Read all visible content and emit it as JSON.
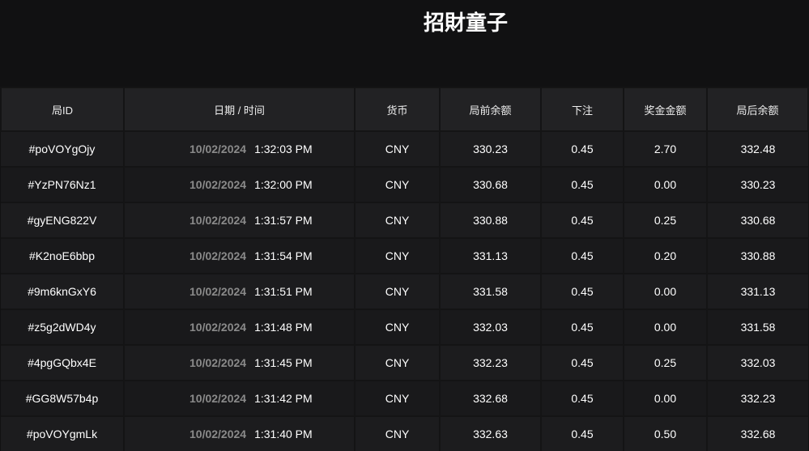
{
  "title": "招財童子",
  "headers": [
    "局ID",
    "日期 / 时间",
    "货币",
    "局前余额",
    "下注",
    "奖金金额",
    "局后余额"
  ],
  "rows": [
    {
      "id": "#poVOYgOjy",
      "date": "10/02/2024",
      "time": "1:32:03 PM",
      "currency": "CNY",
      "before": "330.23",
      "bet": "0.45",
      "win": "2.70",
      "after": "332.48"
    },
    {
      "id": "#YzPN76Nz1",
      "date": "10/02/2024",
      "time": "1:32:00 PM",
      "currency": "CNY",
      "before": "330.68",
      "bet": "0.45",
      "win": "0.00",
      "after": "330.23"
    },
    {
      "id": "#gyENG822V",
      "date": "10/02/2024",
      "time": "1:31:57 PM",
      "currency": "CNY",
      "before": "330.88",
      "bet": "0.45",
      "win": "0.25",
      "after": "330.68"
    },
    {
      "id": "#K2noE6bbp",
      "date": "10/02/2024",
      "time": "1:31:54 PM",
      "currency": "CNY",
      "before": "331.13",
      "bet": "0.45",
      "win": "0.20",
      "after": "330.88"
    },
    {
      "id": "#9m6knGxY6",
      "date": "10/02/2024",
      "time": "1:31:51 PM",
      "currency": "CNY",
      "before": "331.58",
      "bet": "0.45",
      "win": "0.00",
      "after": "331.13"
    },
    {
      "id": "#z5g2dWD4y",
      "date": "10/02/2024",
      "time": "1:31:48 PM",
      "currency": "CNY",
      "before": "332.03",
      "bet": "0.45",
      "win": "0.00",
      "after": "331.58"
    },
    {
      "id": "#4pgGQbx4E",
      "date": "10/02/2024",
      "time": "1:31:45 PM",
      "currency": "CNY",
      "before": "332.23",
      "bet": "0.45",
      "win": "0.25",
      "after": "332.03"
    },
    {
      "id": "#GG8W57b4p",
      "date": "10/02/2024",
      "time": "1:31:42 PM",
      "currency": "CNY",
      "before": "332.68",
      "bet": "0.45",
      "win": "0.00",
      "after": "332.23"
    },
    {
      "id": "#poVOYgmLk",
      "date": "10/02/2024",
      "time": "1:31:40 PM",
      "currency": "CNY",
      "before": "332.63",
      "bet": "0.45",
      "win": "0.50",
      "after": "332.68"
    }
  ]
}
